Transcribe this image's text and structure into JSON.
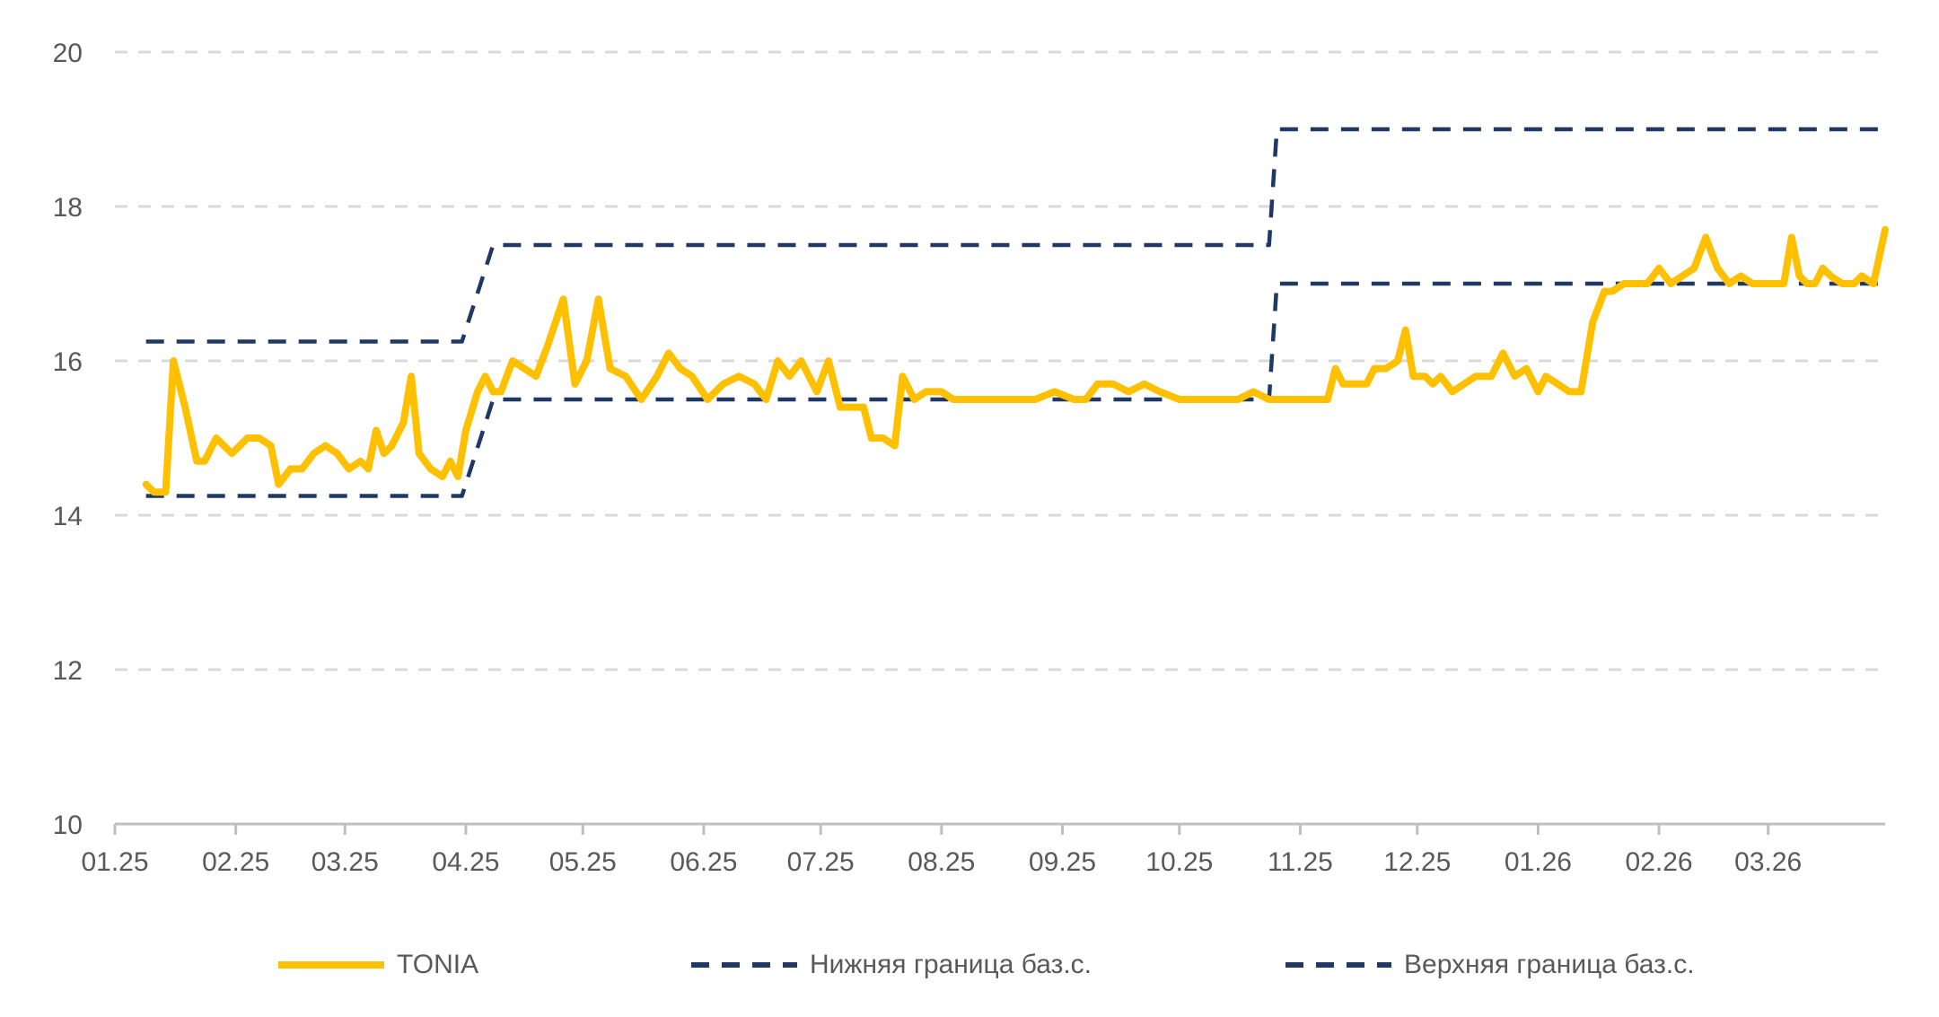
{
  "chart_data": {
    "type": "line",
    "title": "",
    "xlabel": "",
    "ylabel": "",
    "ylim": [
      10,
      20
    ],
    "y_ticks": [
      "10",
      "12",
      "14",
      "16",
      "18",
      "20"
    ],
    "x_ticks": [
      "01.25",
      "02.25",
      "03.25",
      "04.25",
      "05.25",
      "06.25",
      "07.25",
      "08.25",
      "09.25",
      "10.25",
      "11.25",
      "12.25",
      "01.26",
      "02.26",
      "03.26"
    ],
    "x_range": [
      "2025-01-01",
      "2026-03-31"
    ],
    "grid": "horizontal dashed",
    "legend_position": "bottom",
    "series": [
      {
        "name": "TONIA",
        "style": "solid",
        "color": "#FFC000",
        "points": [
          [
            "2025-01-09",
            14.4
          ],
          [
            "2025-01-11",
            14.3
          ],
          [
            "2025-01-14",
            14.3
          ],
          [
            "2025-01-16",
            16.0
          ],
          [
            "2025-01-19",
            15.4
          ],
          [
            "2025-01-22",
            14.7
          ],
          [
            "2025-01-24",
            14.7
          ],
          [
            "2025-01-27",
            15.0
          ],
          [
            "2025-01-31",
            14.8
          ],
          [
            "2025-02-04",
            15.0
          ],
          [
            "2025-02-07",
            15.0
          ],
          [
            "2025-02-10",
            14.9
          ],
          [
            "2025-02-12",
            14.4
          ],
          [
            "2025-02-15",
            14.6
          ],
          [
            "2025-02-18",
            14.6
          ],
          [
            "2025-02-21",
            14.8
          ],
          [
            "2025-02-24",
            14.9
          ],
          [
            "2025-02-27",
            14.8
          ],
          [
            "2025-03-02",
            14.6
          ],
          [
            "2025-03-05",
            14.7
          ],
          [
            "2025-03-07",
            14.6
          ],
          [
            "2025-03-09",
            15.1
          ],
          [
            "2025-03-11",
            14.8
          ],
          [
            "2025-03-13",
            14.9
          ],
          [
            "2025-03-16",
            15.2
          ],
          [
            "2025-03-18",
            15.8
          ],
          [
            "2025-03-20",
            14.8
          ],
          [
            "2025-03-23",
            14.6
          ],
          [
            "2025-03-26",
            14.5
          ],
          [
            "2025-03-28",
            14.7
          ],
          [
            "2025-03-30",
            14.5
          ],
          [
            "2025-04-01",
            15.1
          ],
          [
            "2025-04-04",
            15.6
          ],
          [
            "2025-04-06",
            15.8
          ],
          [
            "2025-04-08",
            15.6
          ],
          [
            "2025-04-10",
            15.6
          ],
          [
            "2025-04-13",
            16.0
          ],
          [
            "2025-04-16",
            15.9
          ],
          [
            "2025-04-19",
            15.8
          ],
          [
            "2025-04-22",
            16.2
          ],
          [
            "2025-04-26",
            16.8
          ],
          [
            "2025-04-29",
            15.7
          ],
          [
            "2025-05-02",
            16.0
          ],
          [
            "2025-05-05",
            16.8
          ],
          [
            "2025-05-08",
            15.9
          ],
          [
            "2025-05-12",
            15.8
          ],
          [
            "2025-05-16",
            15.5
          ],
          [
            "2025-05-20",
            15.8
          ],
          [
            "2025-05-23",
            16.1
          ],
          [
            "2025-05-26",
            15.9
          ],
          [
            "2025-05-29",
            15.8
          ],
          [
            "2025-06-02",
            15.5
          ],
          [
            "2025-06-06",
            15.7
          ],
          [
            "2025-06-10",
            15.8
          ],
          [
            "2025-06-14",
            15.7
          ],
          [
            "2025-06-17",
            15.5
          ],
          [
            "2025-06-20",
            16.0
          ],
          [
            "2025-06-23",
            15.8
          ],
          [
            "2025-06-26",
            16.0
          ],
          [
            "2025-06-30",
            15.6
          ],
          [
            "2025-07-03",
            16.0
          ],
          [
            "2025-07-05",
            15.6
          ],
          [
            "2025-07-06",
            15.4
          ],
          [
            "2025-07-10",
            15.4
          ],
          [
            "2025-07-12",
            15.4
          ],
          [
            "2025-07-14",
            15.0
          ],
          [
            "2025-07-17",
            15.0
          ],
          [
            "2025-07-20",
            14.9
          ],
          [
            "2025-07-22",
            15.8
          ],
          [
            "2025-07-25",
            15.5
          ],
          [
            "2025-07-28",
            15.6
          ],
          [
            "2025-08-01",
            15.6
          ],
          [
            "2025-08-04",
            15.5
          ],
          [
            "2025-08-09",
            15.5
          ],
          [
            "2025-08-15",
            15.5
          ],
          [
            "2025-08-20",
            15.5
          ],
          [
            "2025-08-25",
            15.5
          ],
          [
            "2025-08-30",
            15.6
          ],
          [
            "2025-09-04",
            15.5
          ],
          [
            "2025-09-07",
            15.5
          ],
          [
            "2025-09-10",
            15.7
          ],
          [
            "2025-09-14",
            15.7
          ],
          [
            "2025-09-18",
            15.6
          ],
          [
            "2025-09-22",
            15.7
          ],
          [
            "2025-09-26",
            15.6
          ],
          [
            "2025-10-01",
            15.5
          ],
          [
            "2025-10-06",
            15.5
          ],
          [
            "2025-10-11",
            15.5
          ],
          [
            "2025-10-16",
            15.5
          ],
          [
            "2025-10-20",
            15.6
          ],
          [
            "2025-10-24",
            15.5
          ],
          [
            "2025-10-28",
            15.5
          ],
          [
            "2025-10-31",
            15.5
          ],
          [
            "2025-11-05",
            15.5
          ],
          [
            "2025-11-08",
            15.5
          ],
          [
            "2025-11-10",
            15.9
          ],
          [
            "2025-11-12",
            15.7
          ],
          [
            "2025-11-15",
            15.7
          ],
          [
            "2025-11-18",
            15.7
          ],
          [
            "2025-11-20",
            15.9
          ],
          [
            "2025-11-23",
            15.9
          ],
          [
            "2025-11-26",
            16.0
          ],
          [
            "2025-11-28",
            16.4
          ],
          [
            "2025-11-30",
            15.8
          ],
          [
            "2025-12-03",
            15.8
          ],
          [
            "2025-12-05",
            15.7
          ],
          [
            "2025-12-07",
            15.8
          ],
          [
            "2025-12-10",
            15.6
          ],
          [
            "2025-12-13",
            15.7
          ],
          [
            "2025-12-16",
            15.8
          ],
          [
            "2025-12-20",
            15.8
          ],
          [
            "2025-12-23",
            16.1
          ],
          [
            "2025-12-26",
            15.8
          ],
          [
            "2025-12-29",
            15.9
          ],
          [
            "2026-01-01",
            15.6
          ],
          [
            "2026-01-03",
            15.8
          ],
          [
            "2026-01-06",
            15.7
          ],
          [
            "2026-01-09",
            15.6
          ],
          [
            "2026-01-12",
            15.6
          ],
          [
            "2026-01-15",
            16.5
          ],
          [
            "2026-01-18",
            16.9
          ],
          [
            "2026-01-20",
            16.9
          ],
          [
            "2026-01-23",
            17.0
          ],
          [
            "2026-01-26",
            17.0
          ],
          [
            "2026-01-29",
            17.0
          ],
          [
            "2026-02-01",
            17.2
          ],
          [
            "2026-02-04",
            17.0
          ],
          [
            "2026-02-07",
            17.1
          ],
          [
            "2026-02-10",
            17.2
          ],
          [
            "2026-02-13",
            17.6
          ],
          [
            "2026-02-16",
            17.2
          ],
          [
            "2026-02-19",
            17.0
          ],
          [
            "2026-02-22",
            17.1
          ],
          [
            "2026-02-25",
            17.0
          ],
          [
            "2026-02-28",
            17.0
          ],
          [
            "2026-03-03",
            17.0
          ],
          [
            "2026-03-05",
            17.0
          ],
          [
            "2026-03-07",
            17.6
          ],
          [
            "2026-03-09",
            17.1
          ],
          [
            "2026-03-11",
            17.0
          ],
          [
            "2026-03-13",
            17.0
          ],
          [
            "2026-03-15",
            17.2
          ],
          [
            "2026-03-17",
            17.1
          ],
          [
            "2026-03-20",
            17.0
          ],
          [
            "2026-03-23",
            17.0
          ],
          [
            "2026-03-25",
            17.1
          ],
          [
            "2026-03-28",
            17.0
          ],
          [
            "2026-03-31",
            17.7
          ]
        ]
      },
      {
        "name": "Нижняя граница баз.с.",
        "style": "dashed",
        "color": "#1F3864",
        "points": [
          [
            "2025-01-09",
            14.25
          ],
          [
            "2025-03-31",
            14.25
          ],
          [
            "2025-04-08",
            15.5
          ],
          [
            "2025-10-24",
            15.5
          ],
          [
            "2025-10-26",
            17.0
          ],
          [
            "2026-03-31",
            17.0
          ]
        ]
      },
      {
        "name": "Верхняя граница баз.с.",
        "style": "dashed",
        "color": "#1F3864",
        "points": [
          [
            "2025-01-09",
            16.25
          ],
          [
            "2025-03-31",
            16.25
          ],
          [
            "2025-04-08",
            17.5
          ],
          [
            "2025-10-24",
            17.5
          ],
          [
            "2025-10-26",
            19.0
          ],
          [
            "2026-03-31",
            19.0
          ]
        ]
      }
    ]
  },
  "legend": {
    "items": [
      {
        "label": "TONIA"
      },
      {
        "label": "Нижняя граница баз.с."
      },
      {
        "label": "Верхняя граница баз.с."
      }
    ]
  }
}
